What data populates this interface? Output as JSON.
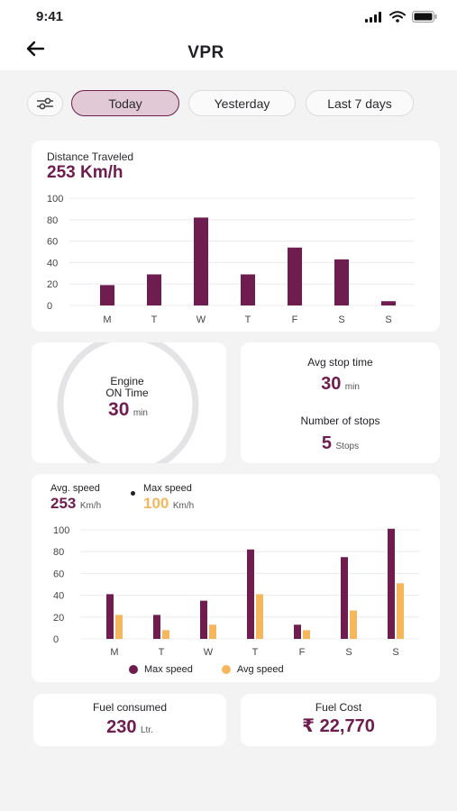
{
  "status_bar": {
    "time": "9:41"
  },
  "header": {
    "title": "VPR"
  },
  "filters": {
    "tabs": [
      {
        "label": "Today",
        "active": true
      },
      {
        "label": "Yesterday",
        "active": false
      },
      {
        "label": "Last 7 days",
        "active": false
      }
    ]
  },
  "distance": {
    "label": "Distance Traveled",
    "value": "253 Km/h"
  },
  "engine": {
    "label_line1": "Engine",
    "label_line2": "ON Time",
    "value": "30",
    "unit": "min"
  },
  "stops": {
    "avg_label": "Avg stop time",
    "avg_value": "30",
    "avg_unit": "min",
    "count_label": "Number of stops",
    "count_value": "5",
    "count_unit": "Stops"
  },
  "speed": {
    "avg_label": "Avg. speed",
    "avg_value": "253",
    "avg_unit": "Km/h",
    "max_label": "Max speed",
    "max_value": "100",
    "max_unit": "Km/h"
  },
  "fuel": {
    "consumed_label": "Fuel consumed",
    "consumed_value": "230",
    "consumed_unit": "Ltr.",
    "cost_label": "Fuel Cost",
    "cost_value": "₹ 22,770"
  },
  "colors": {
    "primary": "#6e1d4e",
    "accent": "#f4b75e",
    "ring": "#e4e4e6"
  },
  "chart_data": [
    {
      "type": "bar",
      "categories": [
        "M",
        "T",
        "W",
        "T",
        "F",
        "S",
        "S"
      ],
      "values": [
        19,
        29,
        82,
        29,
        54,
        43,
        4
      ],
      "y_ticks": [
        0,
        20,
        40,
        60,
        80,
        100
      ],
      "ylim": [
        0,
        100
      ],
      "grid": true
    },
    {
      "type": "bar",
      "categories": [
        "M",
        "T",
        "W",
        "T",
        "F",
        "S",
        "S"
      ],
      "series": [
        {
          "name": "Max speed",
          "values": [
            41,
            22,
            35,
            82,
            13,
            75,
            101
          ]
        },
        {
          "name": "Avg speed",
          "values": [
            22,
            8,
            13,
            41,
            8,
            26,
            51
          ]
        }
      ],
      "y_ticks": [
        0,
        20,
        40,
        60,
        80,
        100
      ],
      "ylim": [
        0,
        100
      ],
      "grid": true,
      "legend": "bottom"
    }
  ]
}
